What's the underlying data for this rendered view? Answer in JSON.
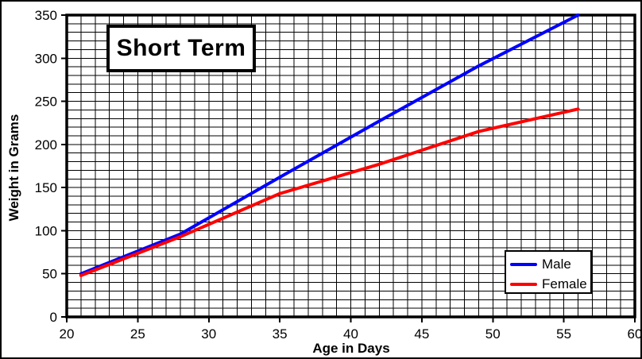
{
  "chart_data": {
    "type": "line",
    "title": "Short Term",
    "xlabel": "Age in Days",
    "ylabel": "Weight in Grams",
    "xlim": [
      20,
      60
    ],
    "ylim": [
      0,
      350
    ],
    "x_ticks": [
      20,
      25,
      30,
      35,
      40,
      45,
      50,
      55,
      60
    ],
    "y_ticks": [
      0,
      50,
      100,
      150,
      200,
      250,
      300,
      350
    ],
    "minor_grid": {
      "x_step": 1,
      "y_step": 10
    },
    "grid": "on",
    "legend_position": "bottom-right",
    "series": [
      {
        "name": "Male",
        "color": "#0000ff",
        "x": [
          21,
          28,
          35,
          42,
          49,
          56
        ],
        "values": [
          50,
          96,
          162,
          227,
          291,
          350
        ]
      },
      {
        "name": "Female",
        "color": "#ff0000",
        "x": [
          21,
          28,
          35,
          42,
          49,
          56
        ],
        "values": [
          48,
          93,
          143,
          177,
          215,
          241
        ]
      }
    ]
  }
}
